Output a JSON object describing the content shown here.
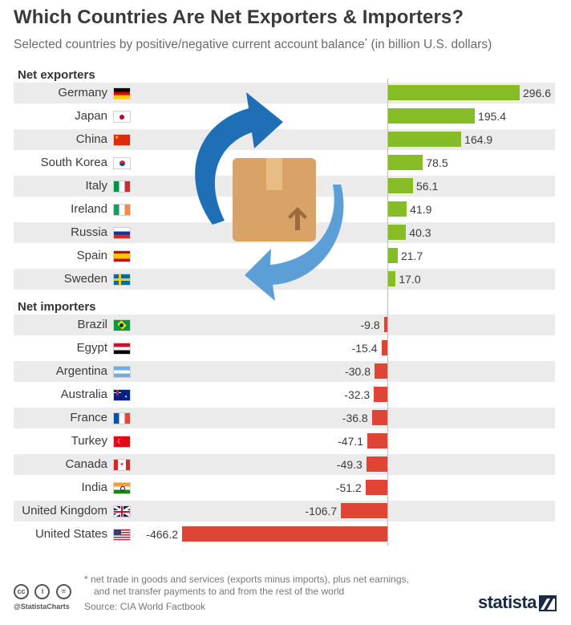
{
  "title": "Which Countries Are Net Exporters & Importers?",
  "subtitle_main": "Selected countries by positive/negative current account balance",
  "subtitle_mark": "*",
  "subtitle_unit": " (in billion U.S. dollars)",
  "footnote_line1": "* net trade in goods and services (exports minus imports), plus net earnings,",
  "footnote_line2": "and net transfer payments to and from the rest of the world",
  "source": "Source: CIA World Factbook",
  "handle": "@StatistaCharts",
  "brand": "statista",
  "license_icons": [
    "cc-icon",
    "by-icon",
    "nd-icon"
  ],
  "illustration": "export-import-box-with-arrows",
  "colors": {
    "positive": "#86bc25",
    "negative": "#e04434",
    "stripe": "#ebebeb",
    "axis": "#bdbdbd"
  },
  "chart_data": {
    "type": "bar",
    "orientation": "horizontal",
    "title": "Which Countries Are Net Exporters & Importers?",
    "subtitle": "Selected countries by positive/negative current account balance* (in billion U.S. dollars)",
    "unit": "billion U.S. dollars",
    "xlim": [
      -466.2,
      296.6
    ],
    "groups": [
      {
        "label": "Net exporters",
        "items": [
          {
            "country": "Germany",
            "value": 296.6,
            "label": "296.6",
            "flag": "de"
          },
          {
            "country": "Japan",
            "value": 195.4,
            "label": "195.4",
            "flag": "jp"
          },
          {
            "country": "China",
            "value": 164.9,
            "label": "164.9",
            "flag": "cn"
          },
          {
            "country": "South Korea",
            "value": 78.5,
            "label": "78.5",
            "flag": "kr"
          },
          {
            "country": "Italy",
            "value": 56.1,
            "label": "56.1",
            "flag": "it"
          },
          {
            "country": "Ireland",
            "value": 41.9,
            "label": "41.9",
            "flag": "ie"
          },
          {
            "country": "Russia",
            "value": 40.3,
            "label": "40.3",
            "flag": "ru"
          },
          {
            "country": "Spain",
            "value": 21.7,
            "label": "21.7",
            "flag": "es"
          },
          {
            "country": "Sweden",
            "value": 17.0,
            "label": "17.0",
            "flag": "se"
          }
        ]
      },
      {
        "label": "Net importers",
        "items": [
          {
            "country": "Brazil",
            "value": -9.8,
            "label": "-9.8",
            "flag": "br"
          },
          {
            "country": "Egypt",
            "value": -15.4,
            "label": "-15.4",
            "flag": "eg"
          },
          {
            "country": "Argentina",
            "value": -30.8,
            "label": "-30.8",
            "flag": "ar"
          },
          {
            "country": "Australia",
            "value": -32.3,
            "label": "-32.3",
            "flag": "au"
          },
          {
            "country": "France",
            "value": -36.8,
            "label": "-36.8",
            "flag": "fr"
          },
          {
            "country": "Turkey",
            "value": -47.1,
            "label": "-47.1",
            "flag": "tr"
          },
          {
            "country": "Canada",
            "value": -49.3,
            "label": "-49.3",
            "flag": "ca"
          },
          {
            "country": "India",
            "value": -51.2,
            "label": "-51.2",
            "flag": "in"
          },
          {
            "country": "United Kingdom",
            "value": -106.7,
            "label": "-106.7",
            "flag": "gb"
          },
          {
            "country": "United States",
            "value": -466.2,
            "label": "-466.2",
            "flag": "us"
          }
        ]
      }
    ]
  }
}
